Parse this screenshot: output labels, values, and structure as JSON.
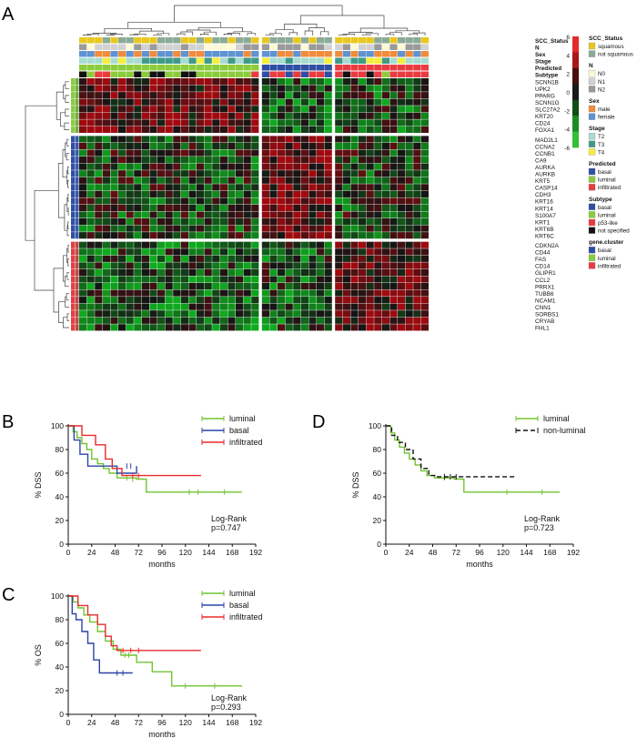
{
  "panel_letters": {
    "A": "A",
    "B": "B",
    "C": "C",
    "D": "D"
  },
  "heatmap": {
    "track_labels": [
      "SCC_Status",
      "N",
      "Sex",
      "Stage",
      "Predicted",
      "Subtype"
    ],
    "genes": [
      "SCNN1B",
      "UPK2",
      "PPARG",
      "SCNN1G",
      "SLC27A2",
      "KRT20",
      "CD24",
      "FOXA1",
      "MAD2L1",
      "CCNA2",
      "CCNB1",
      "CA9",
      "AURKA",
      "AURKB",
      "KRT5",
      "CASP14",
      "CDH3",
      "KRT16",
      "KRT14",
      "S100A7",
      "KRT1",
      "KRT6B",
      "KRT6C",
      "CDKN2A",
      "CD44",
      "FAS",
      "CD14",
      "GLIPR1",
      "CCL2",
      "PRRX1",
      "TUBB6",
      "NCAM1",
      "CNN1",
      "SORBS1",
      "CRYAB",
      "FHL1"
    ],
    "gene_cluster_sizes": [
      8,
      15,
      13
    ],
    "sample_group_sizes": [
      23,
      9,
      12
    ],
    "colorbar_ticks": [
      "6",
      "4",
      "2",
      "0",
      "-2",
      "-4",
      "-6"
    ]
  },
  "legend": {
    "sections": [
      {
        "title": "SCC_Status",
        "items": [
          {
            "label": "squamous",
            "color": "#e8c820"
          },
          {
            "label": "not squamous",
            "color": "#8aab97"
          }
        ]
      },
      {
        "title": "N",
        "items": [
          {
            "label": "N0",
            "color": "#fdf9d6"
          },
          {
            "label": "N1",
            "color": "#d2d2d2"
          },
          {
            "label": "N2",
            "color": "#9a9a9a"
          }
        ]
      },
      {
        "title": "Sex",
        "items": [
          {
            "label": "male",
            "color": "#f08c3c"
          },
          {
            "label": "female",
            "color": "#5f93d1"
          }
        ]
      },
      {
        "title": "Stage",
        "items": [
          {
            "label": "T2",
            "color": "#a8dcd0"
          },
          {
            "label": "T3",
            "color": "#3f9a88"
          },
          {
            "label": "T4",
            "color": "#f4ee3c"
          }
        ]
      },
      {
        "title": "Predicted",
        "items": [
          {
            "label": "basal",
            "color": "#2e4fa3"
          },
          {
            "label": "luminal",
            "color": "#8ccc3c"
          },
          {
            "label": "infiltrated",
            "color": "#ea3b40"
          }
        ]
      },
      {
        "title": "Subtype",
        "items": [
          {
            "label": "basal",
            "color": "#2e4fa3"
          },
          {
            "label": "luminal",
            "color": "#8ccc3c"
          },
          {
            "label": "p53-like",
            "color": "#ea3b40"
          },
          {
            "label": "not specified",
            "color": "#111111"
          }
        ]
      },
      {
        "title": "gene.cluster",
        "items": [
          {
            "label": "basal",
            "color": "#2e4fa3"
          },
          {
            "label": "luminal",
            "color": "#8ccc3c"
          },
          {
            "label": "infiltrated",
            "color": "#ea3b40"
          }
        ]
      }
    ]
  },
  "chart_data": [
    {
      "type": "line",
      "panel": "B",
      "ylabel": "% DSS",
      "xlabel": "months",
      "xlim": [
        0,
        192
      ],
      "ylim": [
        0,
        100
      ],
      "xticks": [
        "0",
        "24",
        "48",
        "72",
        "96",
        "120",
        "144",
        "168",
        "192"
      ],
      "yticks": [
        "0",
        "20",
        "40",
        "60",
        "80",
        "100"
      ],
      "annotation": [
        "Log-Rank",
        "p=0.747"
      ],
      "series": [
        {
          "name": "luminal",
          "color": "#72c431",
          "steps": [
            [
              0,
              100
            ],
            [
              5,
              95
            ],
            [
              9,
              90
            ],
            [
              14,
              85
            ],
            [
              19,
              80
            ],
            [
              24,
              72
            ],
            [
              30,
              68
            ],
            [
              36,
              64
            ],
            [
              42,
              60
            ],
            [
              50,
              56
            ],
            [
              58,
              56
            ],
            [
              70,
              55
            ],
            [
              80,
              44
            ],
            [
              178,
              44
            ]
          ],
          "censors": [
            [
              60,
              56
            ],
            [
              66,
              55
            ],
            [
              124,
              44
            ],
            [
              133,
              44
            ],
            [
              160,
              44
            ]
          ]
        },
        {
          "name": "basal",
          "color": "#2b45a8",
          "steps": [
            [
              0,
              100
            ],
            [
              6,
              88
            ],
            [
              12,
              76
            ],
            [
              20,
              66
            ],
            [
              30,
              66
            ],
            [
              50,
              60
            ],
            [
              70,
              66
            ]
          ],
          "censors": [
            [
              60,
              66
            ],
            [
              64,
              66
            ]
          ]
        },
        {
          "name": "infiltrated",
          "color": "#e82b2b",
          "steps": [
            [
              0,
              100
            ],
            [
              14,
              92
            ],
            [
              28,
              84
            ],
            [
              38,
              72
            ],
            [
              45,
              64
            ],
            [
              55,
              58
            ],
            [
              136,
              58
            ]
          ],
          "censors": [
            [
              66,
              58
            ],
            [
              72,
              58
            ]
          ]
        }
      ]
    },
    {
      "type": "line",
      "panel": "C",
      "ylabel": "% OS",
      "xlabel": "months",
      "xlim": [
        0,
        192
      ],
      "ylim": [
        0,
        100
      ],
      "xticks": [
        "0",
        "24",
        "48",
        "72",
        "96",
        "120",
        "144",
        "168",
        "192"
      ],
      "yticks": [
        "0",
        "20",
        "40",
        "60",
        "80",
        "100"
      ],
      "annotation": [
        "Log-Rank",
        "p=0.293"
      ],
      "series": [
        {
          "name": "luminal",
          "color": "#72c431",
          "steps": [
            [
              0,
              100
            ],
            [
              5,
              95
            ],
            [
              10,
              90
            ],
            [
              16,
              84
            ],
            [
              22,
              78
            ],
            [
              30,
              70
            ],
            [
              38,
              62
            ],
            [
              46,
              55
            ],
            [
              54,
              50
            ],
            [
              70,
              44
            ],
            [
              86,
              36
            ],
            [
              106,
              24
            ],
            [
              178,
              24
            ]
          ],
          "censors": [
            [
              58,
              50
            ],
            [
              62,
              50
            ],
            [
              120,
              24
            ],
            [
              150,
              24
            ]
          ]
        },
        {
          "name": "basal",
          "color": "#2b45a8",
          "steps": [
            [
              0,
              100
            ],
            [
              4,
              85
            ],
            [
              8,
              80
            ],
            [
              14,
              70
            ],
            [
              20,
              60
            ],
            [
              26,
              46
            ],
            [
              32,
              35
            ],
            [
              66,
              35
            ]
          ],
          "censors": [
            [
              50,
              35
            ],
            [
              56,
              35
            ]
          ]
        },
        {
          "name": "infiltrated",
          "color": "#e82b2b",
          "steps": [
            [
              0,
              100
            ],
            [
              10,
              92
            ],
            [
              20,
              84
            ],
            [
              30,
              76
            ],
            [
              38,
              66
            ],
            [
              44,
              58
            ],
            [
              50,
              54
            ],
            [
              136,
              54
            ]
          ],
          "censors": [
            [
              56,
              54
            ],
            [
              64,
              54
            ],
            [
              72,
              54
            ]
          ]
        }
      ]
    },
    {
      "type": "line",
      "panel": "D",
      "ylabel": "% DSS",
      "xlabel": "months",
      "xlim": [
        0,
        192
      ],
      "ylim": [
        0,
        100
      ],
      "xticks": [
        "0",
        "24",
        "48",
        "72",
        "96",
        "120",
        "144",
        "168",
        "192"
      ],
      "yticks": [
        "0",
        "20",
        "40",
        "60",
        "80",
        "100"
      ],
      "annotation": [
        "Log-Rank",
        "p=0.723"
      ],
      "series": [
        {
          "name": "luminal",
          "color": "#72c431",
          "dash": "",
          "steps": [
            [
              0,
              100
            ],
            [
              5,
              94
            ],
            [
              9,
              88
            ],
            [
              14,
              82
            ],
            [
              19,
              77
            ],
            [
              24,
              72
            ],
            [
              30,
              67
            ],
            [
              36,
              62
            ],
            [
              42,
              58
            ],
            [
              50,
              56
            ],
            [
              70,
              55
            ],
            [
              80,
              44
            ],
            [
              178,
              44
            ]
          ],
          "censors": [
            [
              60,
              56
            ],
            [
              124,
              44
            ],
            [
              160,
              44
            ]
          ]
        },
        {
          "name": "non-luminal",
          "color": "#111111",
          "dash": "5,3",
          "steps": [
            [
              0,
              100
            ],
            [
              6,
              92
            ],
            [
              12,
              86
            ],
            [
              20,
              80
            ],
            [
              28,
              72
            ],
            [
              36,
              64
            ],
            [
              44,
              58
            ],
            [
              52,
              57
            ],
            [
              132,
              57
            ]
          ],
          "censors": [
            [
              60,
              57
            ],
            [
              66,
              57
            ],
            [
              72,
              57
            ]
          ]
        }
      ]
    }
  ]
}
